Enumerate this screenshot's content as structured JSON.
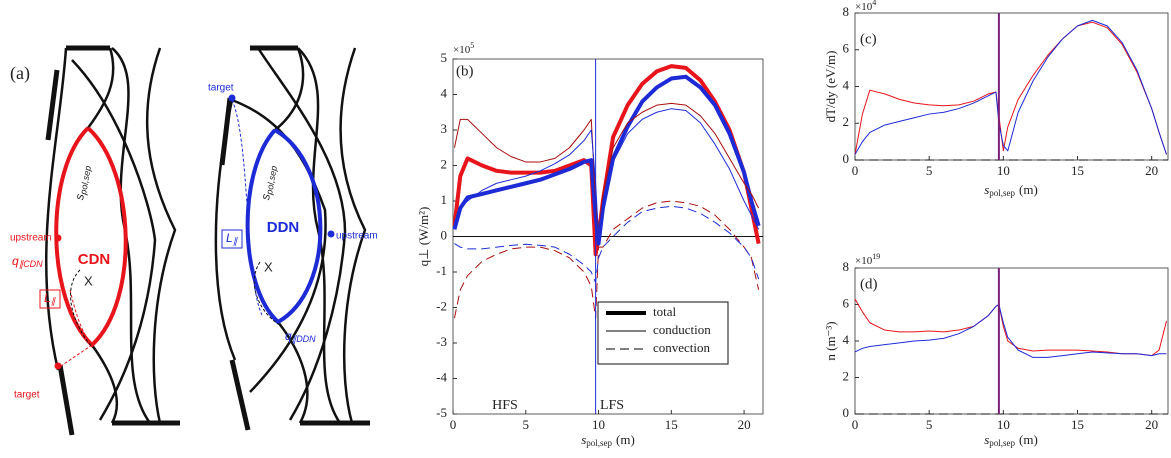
{
  "diagram": {
    "panel_label": "(a)",
    "cdn": {
      "name": "CDN",
      "upstream": "upstream",
      "target": "target",
      "s": "s",
      "s_sub": "pol,sep",
      "q": "q",
      "q_sub": "∥CDN",
      "l": "L",
      "l_sub": "∥",
      "x_point": "X"
    },
    "ddn": {
      "name": "DDN",
      "upstream": "upstream",
      "target": "target",
      "s": "s",
      "s_sub": "pol,sep",
      "q": "q",
      "q_sub": "∥DDN",
      "l": "L",
      "l_sub": "∥",
      "x_point": "X"
    }
  },
  "chart_data": [
    {
      "type": "line",
      "panel_label": "(b)",
      "exponent_base": "×10",
      "exponent_power": "5",
      "ylabel": "q⊥ (W/m²)",
      "xlabel_main": "s",
      "xlabel_sub": "pol,sep",
      "xlabel_unit": "(m)",
      "xlim": [
        0,
        21.3
      ],
      "ylim": [
        -5,
        5
      ],
      "xticks": [
        0,
        5,
        10,
        15,
        20
      ],
      "yticks": [
        -5,
        -4,
        -3,
        -2,
        -1,
        0,
        1,
        2,
        3,
        4,
        5
      ],
      "vline": 9.8,
      "vline_color": "#1d2bd6",
      "hline": 0,
      "hline_dash": "solid",
      "annotations": [
        "HFS",
        "LFS"
      ],
      "legend": [
        {
          "label": "total",
          "linewidth": 4,
          "dash": "solid"
        },
        {
          "label": "conduction",
          "linewidth": 1,
          "dash": "solid"
        },
        {
          "label": "convection",
          "linewidth": 1,
          "dash": "dashed"
        }
      ],
      "x": [
        0.1,
        0.5,
        1,
        2,
        3,
        4,
        5,
        6,
        7,
        8,
        9,
        9.5,
        9.8,
        10,
        10.3,
        11,
        12,
        13,
        14,
        15,
        16,
        17,
        18,
        19,
        20,
        20.5,
        21
      ],
      "series": [
        {
          "color": "#e8141b",
          "linewidth": 4,
          "dash": "solid",
          "values": [
            0.3,
            1.7,
            2.2,
            2.0,
            1.85,
            1.8,
            1.8,
            1.8,
            1.85,
            2.0,
            2.15,
            2.0,
            -0.5,
            0,
            1.0,
            2.8,
            3.7,
            4.3,
            4.65,
            4.8,
            4.75,
            4.4,
            3.8,
            3.0,
            1.8,
            0.8,
            -0.2
          ]
        },
        {
          "color": "#1d2bd6",
          "linewidth": 4,
          "dash": "solid",
          "values": [
            0.2,
            0.8,
            1.1,
            1.2,
            1.3,
            1.4,
            1.5,
            1.6,
            1.75,
            1.9,
            2.1,
            2.15,
            0.6,
            -0.2,
            0.8,
            2.2,
            3.1,
            3.8,
            4.2,
            4.45,
            4.5,
            4.2,
            3.7,
            2.9,
            1.8,
            1.0,
            0.3
          ]
        },
        {
          "color": "#a80d0d",
          "linewidth": 1,
          "dash": "solid",
          "values": [
            2.5,
            3.3,
            3.3,
            2.9,
            2.5,
            2.25,
            2.1,
            2.1,
            2.2,
            2.5,
            3.0,
            3.3,
            1.0,
            0.0,
            1.2,
            2.5,
            3.2,
            3.5,
            3.7,
            3.75,
            3.7,
            3.4,
            2.9,
            2.2,
            1.5,
            1.2,
            0.8
          ]
        },
        {
          "color": "#1d2bd6",
          "linewidth": 1,
          "dash": "solid",
          "values": [
            0.4,
            0.8,
            1.0,
            1.3,
            1.5,
            1.6,
            1.7,
            1.85,
            2.05,
            2.3,
            2.7,
            3.0,
            1.5,
            0.0,
            1.0,
            2.1,
            2.9,
            3.3,
            3.5,
            3.6,
            3.55,
            3.2,
            2.6,
            1.9,
            1.0,
            0.6,
            0.2
          ]
        },
        {
          "color": "#a80d0d",
          "linewidth": 1,
          "dash": "dashed",
          "values": [
            -2.3,
            -1.5,
            -1.1,
            -0.7,
            -0.5,
            -0.35,
            -0.3,
            -0.3,
            -0.4,
            -0.6,
            -1.0,
            -1.4,
            -2.3,
            -0.3,
            -0.3,
            0.2,
            0.5,
            0.8,
            0.95,
            1.0,
            0.95,
            0.85,
            0.6,
            0.2,
            -0.3,
            -0.6,
            -1.5
          ]
        },
        {
          "color": "#1d2bd6",
          "linewidth": 1,
          "dash": "dashed",
          "values": [
            -0.2,
            -0.3,
            -0.35,
            -0.35,
            -0.3,
            -0.25,
            -0.22,
            -0.25,
            -0.3,
            -0.5,
            -0.8,
            -1.0,
            -1.3,
            -0.6,
            -0.3,
            0.0,
            0.4,
            0.7,
            0.8,
            0.85,
            0.8,
            0.65,
            0.4,
            0.1,
            -0.3,
            -0.6,
            -1.2
          ]
        }
      ]
    },
    {
      "type": "line",
      "panel_label": "(c)",
      "exponent_base": "×10",
      "exponent_power": "4",
      "ylabel": "dT/dy (eV/m)",
      "xlabel_main": "s",
      "xlabel_sub": "pol,sep",
      "xlabel_unit": "(m)",
      "xlim": [
        0,
        21.1
      ],
      "ylim": [
        0,
        8
      ],
      "xticks": [
        0,
        5,
        10,
        15,
        20
      ],
      "yticks": [
        0,
        2,
        4,
        6,
        8
      ],
      "vline": 9.7,
      "vline_color": "#7a1f7a",
      "hline": 0,
      "hline_dash": "dashed",
      "x": [
        0,
        0.5,
        1,
        2,
        3,
        4,
        5,
        6,
        7,
        8,
        9,
        9.5,
        9.7,
        10,
        10.3,
        11,
        12,
        13,
        14,
        15,
        16,
        17,
        18,
        19,
        20,
        20.5,
        21
      ],
      "series": [
        {
          "color": "#e8141b",
          "linewidth": 1,
          "dash": "solid",
          "values": [
            0.3,
            2.5,
            3.8,
            3.6,
            3.3,
            3.1,
            3.0,
            2.95,
            3.0,
            3.2,
            3.6,
            3.7,
            2.4,
            0.5,
            1.8,
            3.3,
            4.6,
            5.7,
            6.6,
            7.3,
            7.5,
            7.2,
            6.3,
            4.8,
            2.8,
            1.5,
            0.3
          ]
        },
        {
          "color": "#1d2bd6",
          "linewidth": 1,
          "dash": "solid",
          "values": [
            0.3,
            1.0,
            1.5,
            1.9,
            2.1,
            2.3,
            2.5,
            2.6,
            2.8,
            3.1,
            3.5,
            3.7,
            2.0,
            0.8,
            0.5,
            2.6,
            4.3,
            5.6,
            6.6,
            7.3,
            7.6,
            7.3,
            6.4,
            4.9,
            2.8,
            1.5,
            0.3
          ]
        }
      ]
    },
    {
      "type": "line",
      "panel_label": "(d)",
      "exponent_base": "×10",
      "exponent_power": "19",
      "ylabel": "n (m⁻³)",
      "xlabel_main": "s",
      "xlabel_sub": "pol,sep",
      "xlabel_unit": "(m)",
      "xlim": [
        0,
        21.1
      ],
      "ylim": [
        0,
        8
      ],
      "xticks": [
        0,
        5,
        10,
        15,
        20
      ],
      "yticks": [
        0,
        2,
        4,
        6,
        8
      ],
      "vline": 9.7,
      "vline_color": "#7a1f7a",
      "hline": 0,
      "hline_dash": "dashed",
      "x": [
        0,
        0.5,
        1,
        2,
        3,
        4,
        5,
        6,
        7,
        8,
        9,
        9.5,
        9.7,
        10,
        10.3,
        11,
        12,
        13,
        14,
        15,
        16,
        17,
        18,
        19,
        20,
        20.5,
        21
      ],
      "series": [
        {
          "color": "#e8141b",
          "linewidth": 1,
          "dash": "solid",
          "values": [
            6.3,
            5.6,
            5.0,
            4.6,
            4.5,
            4.5,
            4.55,
            4.5,
            4.6,
            4.8,
            5.4,
            5.9,
            6.0,
            4.8,
            4.0,
            3.6,
            3.45,
            3.5,
            3.5,
            3.5,
            3.45,
            3.4,
            3.3,
            3.3,
            3.2,
            3.5,
            5.1
          ]
        },
        {
          "color": "#1d2bd6",
          "linewidth": 1,
          "dash": "solid",
          "values": [
            3.4,
            3.6,
            3.7,
            3.8,
            3.9,
            4.0,
            4.05,
            4.15,
            4.4,
            4.8,
            5.4,
            5.9,
            6.0,
            5.0,
            4.2,
            3.5,
            3.1,
            3.1,
            3.2,
            3.3,
            3.4,
            3.35,
            3.3,
            3.3,
            3.2,
            3.3,
            3.3
          ]
        }
      ]
    }
  ]
}
